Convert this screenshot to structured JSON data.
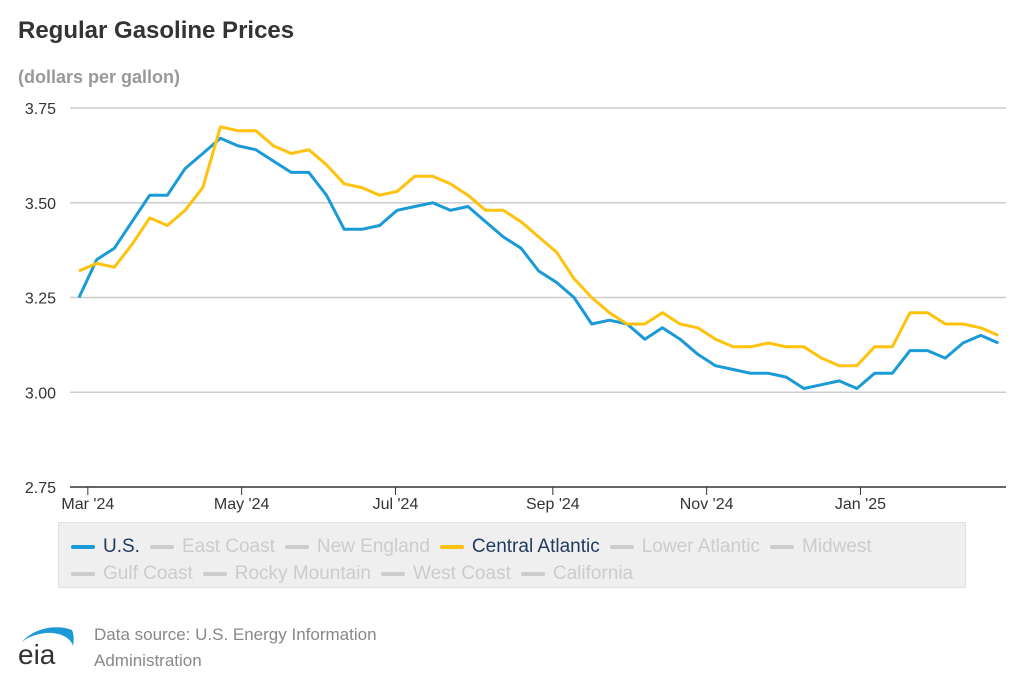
{
  "title": "Regular Gasoline Prices",
  "units": "(dollars per gallon)",
  "source": {
    "line1": "Data source: U.S. Energy Information",
    "line2": "Administration",
    "logo_text": "eia"
  },
  "legend": [
    {
      "label": "U.S.",
      "color": "#1a9ad6",
      "active": true
    },
    {
      "label": "East Coast",
      "color": "#cccccc",
      "active": false
    },
    {
      "label": "New England",
      "color": "#cccccc",
      "active": false
    },
    {
      "label": "Central Atlantic",
      "color": "#ffc20e",
      "active": true
    },
    {
      "label": "Lower Atlantic",
      "color": "#cccccc",
      "active": false
    },
    {
      "label": "Midwest",
      "color": "#cccccc",
      "active": false
    },
    {
      "label": "Gulf Coast",
      "color": "#cccccc",
      "active": false
    },
    {
      "label": "Rocky Mountain",
      "color": "#cccccc",
      "active": false
    },
    {
      "label": "West Coast",
      "color": "#cccccc",
      "active": false
    },
    {
      "label": "California",
      "color": "#cccccc",
      "active": false
    }
  ],
  "chart_data": {
    "type": "line",
    "title": "Regular Gasoline Prices",
    "ylabel": "(dollars per gallon)",
    "xlabel": "",
    "ylim": [
      2.75,
      3.75
    ],
    "yticks": [
      "3.75",
      "3.50",
      "3.25",
      "3.00",
      "2.75"
    ],
    "ytick_values": [
      3.75,
      3.5,
      3.25,
      3.0,
      2.75
    ],
    "xticks": [
      "Mar '24",
      "May '24",
      "Jul '24",
      "Sep '24",
      "Nov '24",
      "Jan '25"
    ],
    "xtick_week_index": [
      0.5,
      9.2,
      17.9,
      26.8,
      35.5,
      44.2
    ],
    "x_note": "weekly observations, late Feb 2024 through late Feb 2025",
    "grid": true,
    "legend_position": "bottom",
    "series": [
      {
        "name": "U.S.",
        "color": "#1a9ad6",
        "values": [
          3.25,
          3.35,
          3.38,
          3.45,
          3.52,
          3.52,
          3.59,
          3.63,
          3.67,
          3.65,
          3.64,
          3.61,
          3.58,
          3.58,
          3.52,
          3.43,
          3.43,
          3.44,
          3.48,
          3.49,
          3.5,
          3.48,
          3.49,
          3.45,
          3.41,
          3.38,
          3.32,
          3.29,
          3.25,
          3.18,
          3.19,
          3.18,
          3.14,
          3.17,
          3.14,
          3.1,
          3.07,
          3.06,
          3.05,
          3.05,
          3.04,
          3.01,
          3.02,
          3.03,
          3.01,
          3.05,
          3.05,
          3.11,
          3.11,
          3.09,
          3.13,
          3.15,
          3.13
        ]
      },
      {
        "name": "Central Atlantic",
        "color": "#ffc20e",
        "values": [
          3.32,
          3.34,
          3.33,
          3.39,
          3.46,
          3.44,
          3.48,
          3.54,
          3.7,
          3.69,
          3.69,
          3.65,
          3.63,
          3.64,
          3.6,
          3.55,
          3.54,
          3.52,
          3.53,
          3.57,
          3.57,
          3.55,
          3.52,
          3.48,
          3.48,
          3.45,
          3.41,
          3.37,
          3.3,
          3.25,
          3.21,
          3.18,
          3.18,
          3.21,
          3.18,
          3.17,
          3.14,
          3.12,
          3.12,
          3.13,
          3.12,
          3.12,
          3.09,
          3.07,
          3.07,
          3.12,
          3.12,
          3.21,
          3.21,
          3.18,
          3.18,
          3.17,
          3.15
        ]
      }
    ]
  }
}
